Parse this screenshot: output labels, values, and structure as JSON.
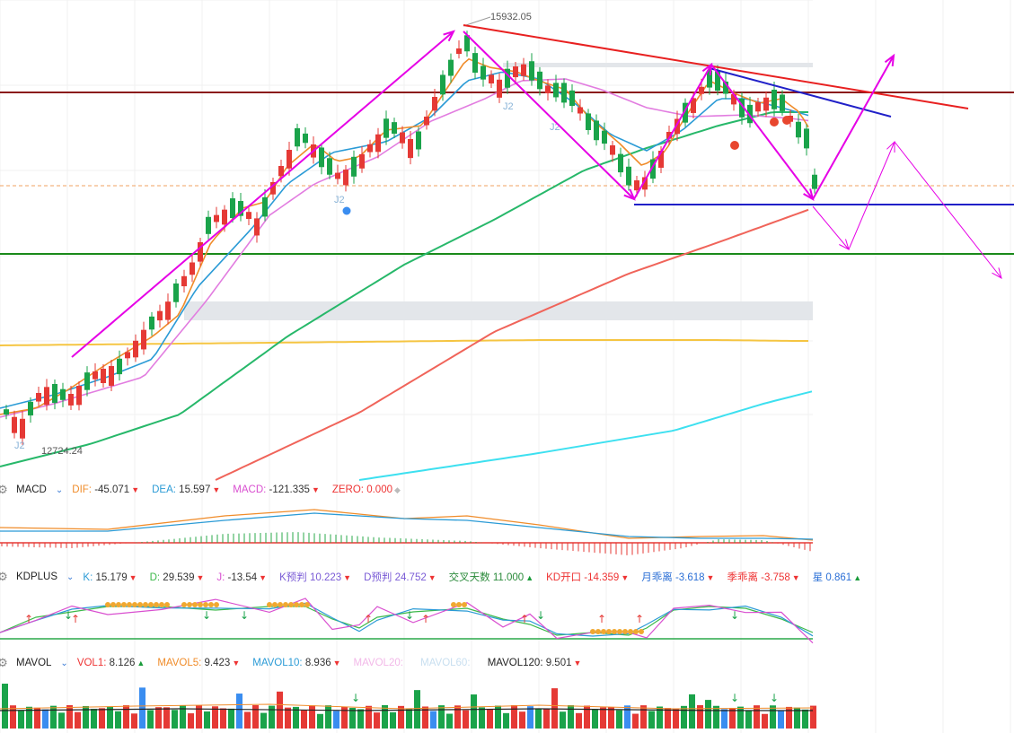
{
  "chart_data": {
    "type": "candlestick",
    "price_labels": {
      "high": "15932.05",
      "low": "12724.24"
    },
    "pattern_markers": [
      "J2",
      "J2",
      "J2",
      "J2"
    ],
    "macd": {
      "name": "MACD",
      "items": [
        {
          "label": "DIF:",
          "value": "-45.071",
          "color": "#f08c2a",
          "arrow": "down"
        },
        {
          "label": "DEA:",
          "value": "15.597",
          "color": "#2b9bd6",
          "arrow": "down"
        },
        {
          "label": "MACD:",
          "value": "-121.335",
          "color": "#d94fd0",
          "arrow": "down"
        },
        {
          "label": "ZERO:",
          "value": "0.000",
          "color": "#e33",
          "arrow": "none"
        }
      ]
    },
    "kdplus": {
      "name": "KDPLUS",
      "items": [
        {
          "label": "K:",
          "value": "15.179",
          "color": "#2b9bd6",
          "arrow": "down"
        },
        {
          "label": "D:",
          "value": "29.539",
          "color": "#3cb94a",
          "arrow": "down"
        },
        {
          "label": "J:",
          "value": "-13.54",
          "color": "#d94fd0",
          "arrow": "down"
        },
        {
          "label": "K预判",
          "value": "10.223",
          "color": "#7a5bd6",
          "arrow": "down"
        },
        {
          "label": "D预判",
          "value": "24.752",
          "color": "#7a5bd6",
          "arrow": "down"
        },
        {
          "label": "交叉天数",
          "value": "11.000",
          "color": "#2a8a3a",
          "arrow": "up"
        },
        {
          "label": "KD开口",
          "value": "-14.359",
          "color": "#e33",
          "arrow": "down"
        },
        {
          "label": "月乖离",
          "value": "-3.618",
          "color": "#2b6fd6",
          "arrow": "down"
        },
        {
          "label": "季乖离",
          "value": "-3.758",
          "color": "#e33",
          "arrow": "down"
        },
        {
          "label": "星",
          "value": "0.861",
          "color": "#2b6fd6",
          "arrow": "up"
        }
      ]
    },
    "mavol": {
      "name": "MAVOL",
      "items": [
        {
          "label": "VOL1:",
          "value": "8.126",
          "color": "#e33",
          "arrow": "up"
        },
        {
          "label": "MAVOL5:",
          "value": "9.423",
          "color": "#f08c2a",
          "arrow": "down"
        },
        {
          "label": "MAVOL10:",
          "value": "8.936",
          "color": "#2b9bd6",
          "arrow": "down"
        },
        {
          "label": "MAVOL20:",
          "value": "",
          "color": "#f2b8e8",
          "arrow": "none"
        },
        {
          "label": "MAVOL60:",
          "value": "",
          "color": "#c8dff0",
          "arrow": "none"
        },
        {
          "label": "MAVOL120:",
          "value": "9.501",
          "color": "#222",
          "arrow": "down"
        }
      ]
    },
    "colors": {
      "up": "#e53935",
      "down": "#1aa34a",
      "ma5": "#f08c2a",
      "ma10": "#2b9bd6",
      "ma20": "#e27de0",
      "ma60": "#27b86a",
      "ma120": "#f0645a",
      "ma250": "#3de0f0",
      "support_yellow": "#f5c542",
      "trend": "#e600e6"
    }
  }
}
